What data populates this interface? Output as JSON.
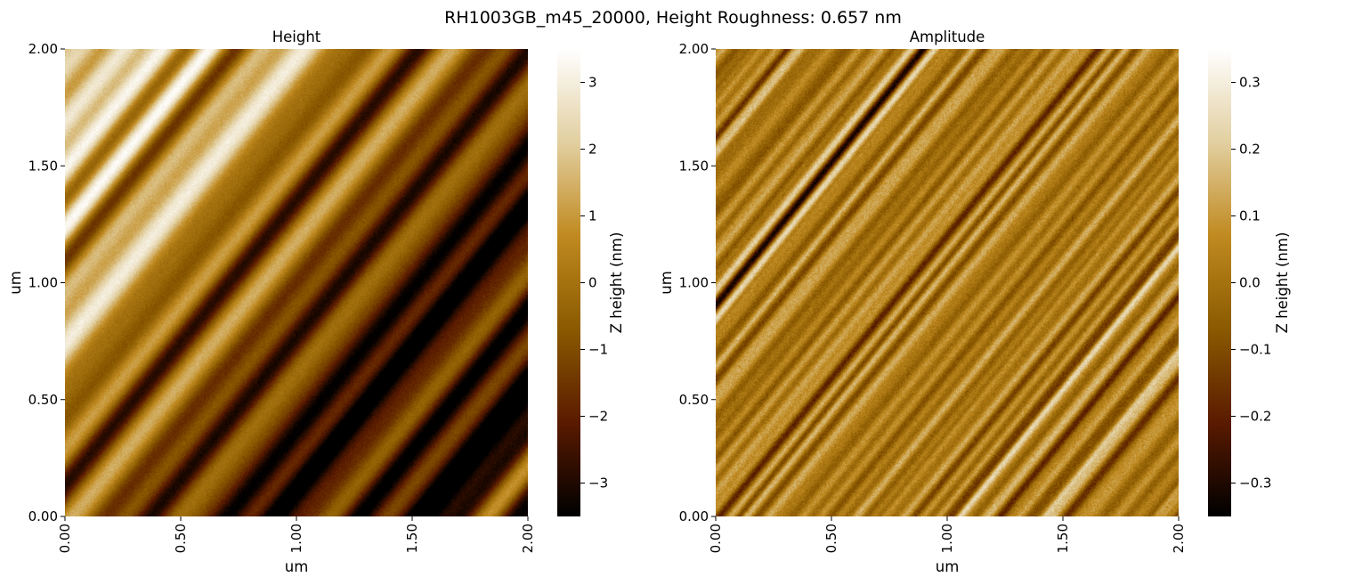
{
  "figure": {
    "suptitle": "RH1003GB_m45_20000, Height Roughness: 0.657 nm"
  },
  "chart_data": [
    {
      "type": "heatmap",
      "title": "Height",
      "xlabel": "um",
      "ylabel": "um",
      "xlim": [
        0,
        2
      ],
      "ylim": [
        0,
        2
      ],
      "x_ticks": [
        {
          "value": 0.0,
          "label": "0.00"
        },
        {
          "value": 0.5,
          "label": "0.50"
        },
        {
          "value": 1.0,
          "label": "1.00"
        },
        {
          "value": 1.5,
          "label": "1.50"
        },
        {
          "value": 2.0,
          "label": "2.00"
        }
      ],
      "y_ticks": [
        {
          "value": 0.0,
          "label": "0.00"
        },
        {
          "value": 0.5,
          "label": "0.50"
        },
        {
          "value": 1.0,
          "label": "1.00"
        },
        {
          "value": 1.5,
          "label": "1.50"
        },
        {
          "value": 2.0,
          "label": "2.00"
        }
      ],
      "colormap": [
        "#000000",
        "#5a1a00",
        "#8a5a00",
        "#c08a20",
        "#e2cfa0",
        "#ffffff"
      ],
      "colorbar": {
        "label": "Z height (nm)",
        "vmin": -3.5,
        "vmax": 3.5,
        "ticks": [
          {
            "value": 3,
            "label": "3"
          },
          {
            "value": 2,
            "label": "2"
          },
          {
            "value": 1,
            "label": "1"
          },
          {
            "value": 0,
            "label": "0"
          },
          {
            "value": -1,
            "label": "−1"
          },
          {
            "value": -2,
            "label": "−2"
          },
          {
            "value": -3,
            "label": "−3"
          }
        ]
      }
    },
    {
      "type": "heatmap",
      "title": "Amplitude",
      "xlabel": "um",
      "ylabel": "um",
      "xlim": [
        0,
        2
      ],
      "ylim": [
        0,
        2
      ],
      "x_ticks": [
        {
          "value": 0.0,
          "label": "0.00"
        },
        {
          "value": 0.5,
          "label": "0.50"
        },
        {
          "value": 1.0,
          "label": "1.00"
        },
        {
          "value": 1.5,
          "label": "1.50"
        },
        {
          "value": 2.0,
          "label": "2.00"
        }
      ],
      "y_ticks": [
        {
          "value": 0.0,
          "label": "0.00"
        },
        {
          "value": 0.5,
          "label": "0.50"
        },
        {
          "value": 1.0,
          "label": "1.00"
        },
        {
          "value": 1.5,
          "label": "1.50"
        },
        {
          "value": 2.0,
          "label": "2.00"
        }
      ],
      "colormap": [
        "#000000",
        "#5a1a00",
        "#8a5a00",
        "#c08a20",
        "#e2cfa0",
        "#ffffff"
      ],
      "colorbar": {
        "label": "Z height (nm)",
        "vmin": -0.35,
        "vmax": 0.35,
        "ticks": [
          {
            "value": 0.3,
            "label": "0.3"
          },
          {
            "value": 0.2,
            "label": "0.2"
          },
          {
            "value": 0.1,
            "label": "0.1"
          },
          {
            "value": 0.0,
            "label": "0.0"
          },
          {
            "value": -0.1,
            "label": "−0.1"
          },
          {
            "value": -0.2,
            "label": "−0.2"
          },
          {
            "value": -0.3,
            "label": "−0.3"
          }
        ]
      }
    }
  ]
}
